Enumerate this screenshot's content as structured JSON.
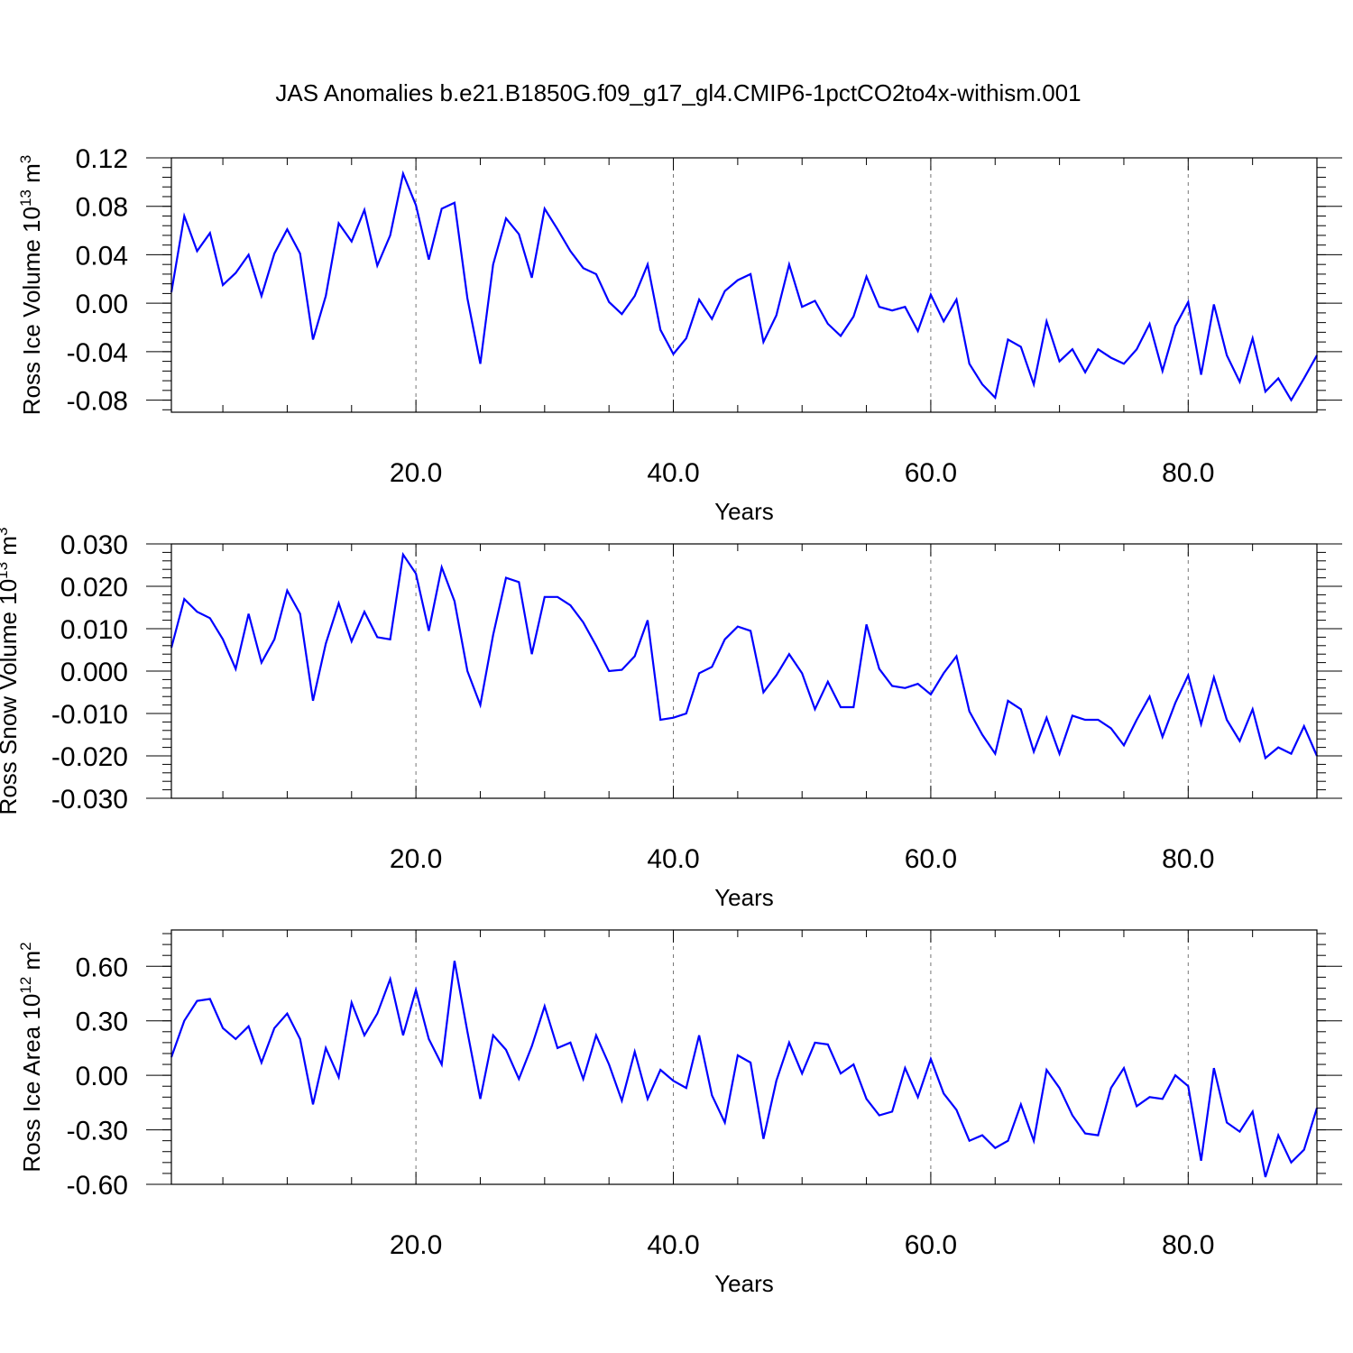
{
  "title": "JAS Anomalies b.e21.B1850G.f09_g17_gl4.CMIP6-1pctCO2to4x-withism.001",
  "colors": {
    "series": "#0000ff",
    "axis": "#000000",
    "grid": "#777777"
  },
  "chart_data": [
    {
      "type": "line",
      "ylabel": "Ross Ice Volume 10",
      "ylabel_exp": "13",
      "ylabel_unit": " m",
      "ylabel_unit_exp": "3",
      "xlabel": "Years",
      "xlim": [
        1,
        90
      ],
      "ylim": [
        -0.09,
        0.12
      ],
      "xticks": [
        20,
        40,
        60,
        80
      ],
      "xtick_labels": [
        "20.0",
        "40.0",
        "60.0",
        "80.0"
      ],
      "yticks": [
        -0.08,
        -0.04,
        0.0,
        0.04,
        0.08,
        0.12
      ],
      "ytick_labels": [
        "-0.08",
        "-0.04",
        "0.00",
        "0.04",
        "0.08",
        "0.12"
      ],
      "grid": "vertical dashed at x ticks",
      "x": [
        1,
        2,
        3,
        4,
        5,
        6,
        7,
        8,
        9,
        10,
        11,
        12,
        13,
        14,
        15,
        16,
        17,
        18,
        19,
        20,
        21,
        22,
        23,
        24,
        25,
        26,
        27,
        28,
        29,
        30,
        31,
        32,
        33,
        34,
        35,
        36,
        37,
        38,
        39,
        40,
        41,
        42,
        43,
        44,
        45,
        46,
        47,
        48,
        49,
        50,
        51,
        52,
        53,
        54,
        55,
        56,
        57,
        58,
        59,
        60,
        61,
        62,
        63,
        64,
        65,
        66,
        67,
        68,
        69,
        70,
        71,
        72,
        73,
        74,
        75,
        76,
        77,
        78,
        79,
        80,
        81,
        82,
        83,
        84,
        85,
        86,
        87,
        88,
        89,
        90
      ],
      "series": [
        {
          "values": [
            0.009,
            0.072,
            0.043,
            0.058,
            0.015,
            0.025,
            0.04,
            0.006,
            0.041,
            0.061,
            0.041,
            -0.03,
            0.006,
            0.066,
            0.051,
            0.077,
            0.031,
            0.056,
            0.107,
            0.081,
            0.036,
            0.078,
            0.083,
            0.004,
            -0.05,
            0.032,
            0.07,
            0.057,
            0.021,
            0.078,
            0.061,
            0.043,
            0.029,
            0.024,
            0.001,
            -0.009,
            0.006,
            0.032,
            -0.022,
            -0.042,
            -0.029,
            0.003,
            -0.013,
            0.01,
            0.019,
            0.024,
            -0.032,
            -0.01,
            0.032,
            -0.003,
            0.002,
            -0.017,
            -0.027,
            -0.011,
            0.022,
            -0.003,
            -0.006,
            -0.003,
            -0.023,
            0.007,
            -0.015,
            0.003,
            -0.05,
            -0.067,
            -0.078,
            -0.03,
            -0.036,
            -0.067,
            -0.015,
            -0.048,
            -0.038,
            -0.057,
            -0.038,
            -0.045,
            -0.05,
            -0.038,
            -0.017,
            -0.056,
            -0.019,
            0.001,
            -0.059,
            -0.001,
            -0.043,
            -0.065,
            -0.029,
            -0.073,
            -0.062,
            -0.08,
            -0.062,
            -0.043
          ]
        }
      ]
    },
    {
      "type": "line",
      "ylabel": "Ross Snow Volume 10",
      "ylabel_exp": "13",
      "ylabel_unit": " m",
      "ylabel_unit_exp": "3",
      "xlabel": "Years",
      "xlim": [
        1,
        90
      ],
      "ylim": [
        -0.03,
        0.03
      ],
      "xticks": [
        20,
        40,
        60,
        80
      ],
      "xtick_labels": [
        "20.0",
        "40.0",
        "60.0",
        "80.0"
      ],
      "yticks": [
        -0.03,
        -0.02,
        -0.01,
        0.0,
        0.01,
        0.02,
        0.03
      ],
      "ytick_labels": [
        "-0.030",
        "-0.020",
        "-0.010",
        "0.000",
        "0.010",
        "0.020",
        "0.030"
      ],
      "grid": "vertical dashed at x ticks",
      "x": [
        1,
        2,
        3,
        4,
        5,
        6,
        7,
        8,
        9,
        10,
        11,
        12,
        13,
        14,
        15,
        16,
        17,
        18,
        19,
        20,
        21,
        22,
        23,
        24,
        25,
        26,
        27,
        28,
        29,
        30,
        31,
        32,
        33,
        34,
        35,
        36,
        37,
        38,
        39,
        40,
        41,
        42,
        43,
        44,
        45,
        46,
        47,
        48,
        49,
        50,
        51,
        52,
        53,
        54,
        55,
        56,
        57,
        58,
        59,
        60,
        61,
        62,
        63,
        64,
        65,
        66,
        67,
        68,
        69,
        70,
        71,
        72,
        73,
        74,
        75,
        76,
        77,
        78,
        79,
        80,
        81,
        82,
        83,
        84,
        85,
        86,
        87,
        88,
        89,
        90
      ],
      "series": [
        {
          "values": [
            0.0055,
            0.017,
            0.014,
            0.0125,
            0.0075,
            0.0005,
            0.0135,
            0.002,
            0.0075,
            0.019,
            0.0135,
            -0.007,
            0.0065,
            0.016,
            0.007,
            0.014,
            0.008,
            0.0075,
            0.0275,
            0.023,
            0.0095,
            0.0245,
            0.0165,
            0.0,
            -0.008,
            0.0085,
            0.022,
            0.021,
            0.004,
            0.0175,
            0.0175,
            0.0155,
            0.0115,
            0.006,
            0.0,
            0.0003,
            0.0035,
            0.012,
            -0.0115,
            -0.011,
            -0.01,
            -0.0005,
            0.001,
            0.0075,
            0.0105,
            0.0095,
            -0.005,
            -0.001,
            0.004,
            -0.0005,
            -0.009,
            -0.0025,
            -0.0085,
            -0.0085,
            0.011,
            0.0005,
            -0.0035,
            -0.004,
            -0.003,
            -0.0055,
            -0.0005,
            0.0035,
            -0.0095,
            -0.015,
            -0.0195,
            -0.007,
            -0.009,
            -0.019,
            -0.011,
            -0.0195,
            -0.0105,
            -0.0115,
            -0.0115,
            -0.0135,
            -0.0175,
            -0.0115,
            -0.006,
            -0.0155,
            -0.0075,
            -0.001,
            -0.0125,
            -0.0015,
            -0.0115,
            -0.0165,
            -0.009,
            -0.0205,
            -0.018,
            -0.0195,
            -0.013,
            -0.02
          ]
        }
      ]
    },
    {
      "type": "line",
      "ylabel": "Ross Ice Area 10",
      "ylabel_exp": "12",
      "ylabel_unit": " m",
      "ylabel_unit_exp": "2",
      "xlabel": "Years",
      "xlim": [
        1,
        90
      ],
      "ylim": [
        -0.6,
        0.8
      ],
      "xticks": [
        20,
        40,
        60,
        80
      ],
      "xtick_labels": [
        "20.0",
        "40.0",
        "60.0",
        "80.0"
      ],
      "yticks": [
        -0.6,
        -0.3,
        0.0,
        0.3,
        0.6
      ],
      "ytick_labels": [
        "-0.60",
        "-0.30",
        "0.00",
        "0.30",
        "0.60"
      ],
      "grid": "vertical dashed at x ticks",
      "x": [
        1,
        2,
        3,
        4,
        5,
        6,
        7,
        8,
        9,
        10,
        11,
        12,
        13,
        14,
        15,
        16,
        17,
        18,
        19,
        20,
        21,
        22,
        23,
        24,
        25,
        26,
        27,
        28,
        29,
        30,
        31,
        32,
        33,
        34,
        35,
        36,
        37,
        38,
        39,
        40,
        41,
        42,
        43,
        44,
        45,
        46,
        47,
        48,
        49,
        50,
        51,
        52,
        53,
        54,
        55,
        56,
        57,
        58,
        59,
        60,
        61,
        62,
        63,
        64,
        65,
        66,
        67,
        68,
        69,
        70,
        71,
        72,
        73,
        74,
        75,
        76,
        77,
        78,
        79,
        80,
        81,
        82,
        83,
        84,
        85,
        86,
        87,
        88,
        89,
        90
      ],
      "series": [
        {
          "values": [
            0.1,
            0.3,
            0.41,
            0.42,
            0.26,
            0.2,
            0.27,
            0.07,
            0.26,
            0.34,
            0.2,
            -0.16,
            0.15,
            -0.01,
            0.4,
            0.22,
            0.34,
            0.53,
            0.22,
            0.47,
            0.2,
            0.06,
            0.63,
            0.24,
            -0.13,
            0.22,
            0.14,
            -0.02,
            0.16,
            0.38,
            0.15,
            0.18,
            -0.02,
            0.22,
            0.06,
            -0.14,
            0.13,
            -0.13,
            0.03,
            -0.03,
            -0.07,
            0.22,
            -0.11,
            -0.26,
            0.11,
            0.07,
            -0.35,
            -0.03,
            0.18,
            0.01,
            0.18,
            0.17,
            0.01,
            0.06,
            -0.13,
            -0.22,
            -0.2,
            0.04,
            -0.12,
            0.09,
            -0.1,
            -0.19,
            -0.36,
            -0.33,
            -0.4,
            -0.36,
            -0.16,
            -0.36,
            0.03,
            -0.07,
            -0.22,
            -0.32,
            -0.33,
            -0.07,
            0.04,
            -0.17,
            -0.12,
            -0.13,
            0.0,
            -0.06,
            -0.47,
            0.04,
            -0.26,
            -0.31,
            -0.2,
            -0.56,
            -0.33,
            -0.48,
            -0.41,
            -0.18
          ]
        }
      ]
    }
  ]
}
